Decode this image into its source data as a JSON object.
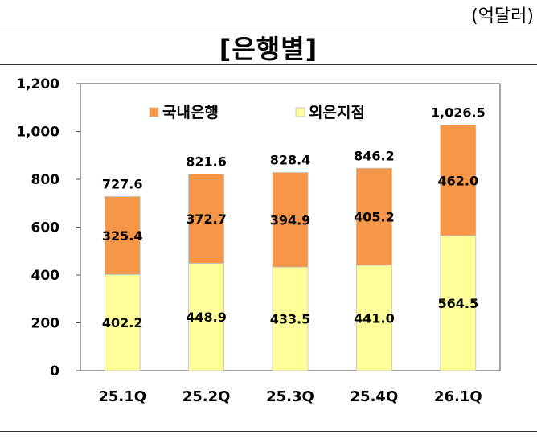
{
  "unit_label": "(억달러)",
  "chart_data": {
    "type": "bar",
    "stacked": true,
    "title": "[은행별]",
    "categories": [
      "25.1Q",
      "25.2Q",
      "25.3Q",
      "25.4Q",
      "26.1Q"
    ],
    "series": [
      {
        "name": "외은지점",
        "color": "#FFFF99",
        "values": [
          402.2,
          448.9,
          433.5,
          441.0,
          564.5
        ],
        "labels": [
          "402.2",
          "448.9",
          "433.5",
          "441.0",
          "564.5"
        ]
      },
      {
        "name": "국내은행",
        "color": "#F79646",
        "values": [
          325.4,
          372.7,
          394.9,
          405.2,
          462.0
        ],
        "labels": [
          "325.4",
          "372.7",
          "394.9",
          "405.2",
          "462.0"
        ]
      }
    ],
    "legend_order": [
      1,
      0
    ],
    "totals": [
      "727.6",
      "821.6",
      "828.4",
      "846.2",
      "1,026.5"
    ],
    "ylim": [
      0,
      1200
    ],
    "yticks": [
      0,
      200,
      400,
      600,
      800,
      1000,
      1200
    ],
    "ytick_labels": [
      "0",
      "200",
      "400",
      "600",
      "800",
      "1,000",
      "1,200"
    ],
    "xlabel": "",
    "ylabel": "",
    "legend_position": "top-left"
  }
}
